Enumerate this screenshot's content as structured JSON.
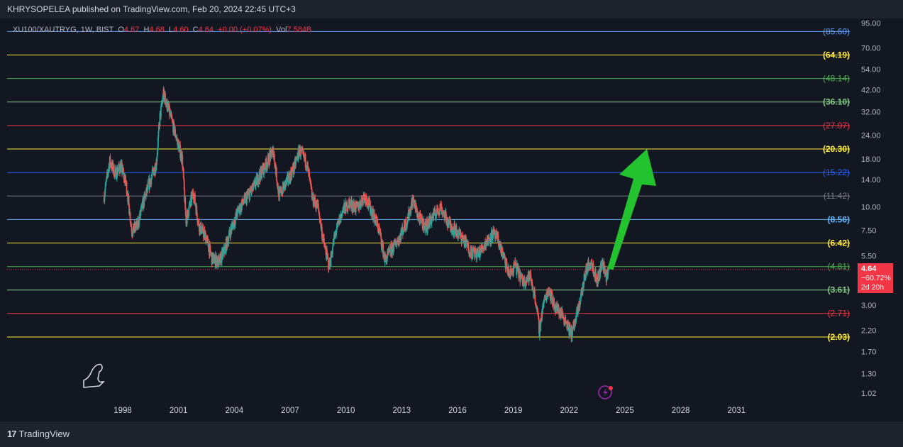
{
  "header": {
    "publisher_line": "KHRYSOPELEA published on TradingView.com, Feb 20, 2024 22:45 UTC+3"
  },
  "legend": {
    "symbol": "XU100/XAUTRYG, 1W, BIST",
    "open_label": "O",
    "open": "4.67",
    "high_label": "H",
    "high": "4.68",
    "low_label": "L",
    "low": "4.60",
    "close_label": "C",
    "close": "4.64",
    "change": "+0.00 (+0.07%)",
    "vol_label": "Vol",
    "vol": "7.584B"
  },
  "price_tag": {
    "price": "4.64",
    "change": "−60.72%",
    "countdown": "2d 20h"
  },
  "footer": {
    "brand": "TradingView"
  },
  "colors": {
    "background": "#131722",
    "up": "#26a69a",
    "down": "#ef5350",
    "arrow": "#22c32e",
    "price_line": "#f23645"
  },
  "icons": {
    "dino": "dinosaur-icon",
    "event": "lightning-icon"
  },
  "chart_data": {
    "type": "candlestick",
    "scale": "log",
    "x_range": [
      1996.0,
      2034.0
    ],
    "ylim": [
      0.9,
      100
    ],
    "x_ticks": [
      "1998",
      "2001",
      "2004",
      "2007",
      "2010",
      "2013",
      "2016",
      "2019",
      "2022",
      "2025",
      "2028",
      "2031"
    ],
    "y_ticks": [
      "95.00",
      "70.00",
      "54.00",
      "42.00",
      "32.00",
      "24.00",
      "18.00",
      "14.00",
      "10.00",
      "7.50",
      "5.50",
      "3.00",
      "2.20",
      "1.70",
      "1.30",
      "1.02"
    ],
    "levels": [
      {
        "label": "(85.60)",
        "value": 85.6,
        "color": "#5b9cf6"
      },
      {
        "label": "(64.19)",
        "value": 64.19,
        "color": "#ffeb3b"
      },
      {
        "label": "(48.14)",
        "value": 48.14,
        "color": "#4caf50"
      },
      {
        "label": "(36.10)",
        "value": 36.1,
        "color": "#81c784"
      },
      {
        "label": "(27.07)",
        "value": 27.07,
        "color": "#f23645"
      },
      {
        "label": "(20.30)",
        "value": 20.3,
        "color": "#ffeb3b"
      },
      {
        "label": "(15.22)",
        "value": 15.22,
        "color": "#2962ff"
      },
      {
        "label": "(11.42)",
        "value": 11.42,
        "color": "#787b86"
      },
      {
        "label": "(8.56)",
        "value": 8.56,
        "color": "#64b5f6"
      },
      {
        "label": "(6.42)",
        "value": 6.42,
        "color": "#ffeb3b"
      },
      {
        "label": "(4.81)",
        "value": 4.81,
        "color": "#4caf50"
      },
      {
        "label": "(3.61)",
        "value": 3.61,
        "color": "#81c784"
      },
      {
        "label": "(2.71)",
        "value": 2.71,
        "color": "#f23645"
      },
      {
        "label": "(2.03)",
        "value": 2.03,
        "color": "#ffeb3b"
      }
    ],
    "current_price": 4.64,
    "price_path": [
      [
        1997.0,
        11.5
      ],
      [
        1997.3,
        17.5
      ],
      [
        1997.6,
        15.0
      ],
      [
        1997.9,
        16.5
      ],
      [
        1998.2,
        13.0
      ],
      [
        1998.5,
        7.4
      ],
      [
        1998.8,
        8.0
      ],
      [
        1999.1,
        10.5
      ],
      [
        1999.5,
        14.0
      ],
      [
        1999.8,
        17.0
      ],
      [
        2000.0,
        30.0
      ],
      [
        2000.2,
        40.0
      ],
      [
        2000.5,
        32.0
      ],
      [
        2000.9,
        23.0
      ],
      [
        2001.2,
        18.0
      ],
      [
        2001.4,
        8.5
      ],
      [
        2001.8,
        12.0
      ],
      [
        2002.1,
        8.0
      ],
      [
        2002.5,
        6.8
      ],
      [
        2002.8,
        5.3
      ],
      [
        2003.2,
        5.1
      ],
      [
        2003.5,
        6.0
      ],
      [
        2003.8,
        7.5
      ],
      [
        2004.2,
        9.5
      ],
      [
        2004.6,
        11.0
      ],
      [
        2005.0,
        12.5
      ],
      [
        2005.4,
        15.0
      ],
      [
        2005.8,
        17.5
      ],
      [
        2006.1,
        20.0
      ],
      [
        2006.4,
        11.5
      ],
      [
        2006.8,
        13.5
      ],
      [
        2007.2,
        16.0
      ],
      [
        2007.5,
        20.0
      ],
      [
        2007.9,
        17.0
      ],
      [
        2008.2,
        11.0
      ],
      [
        2008.5,
        10.0
      ],
      [
        2008.8,
        6.5
      ],
      [
        2009.1,
        4.8
      ],
      [
        2009.4,
        7.0
      ],
      [
        2009.8,
        9.5
      ],
      [
        2010.2,
        10.5
      ],
      [
        2010.6,
        9.8
      ],
      [
        2011.0,
        11.5
      ],
      [
        2011.4,
        9.5
      ],
      [
        2011.8,
        7.5
      ],
      [
        2012.1,
        5.2
      ],
      [
        2012.5,
        6.0
      ],
      [
        2012.9,
        7.0
      ],
      [
        2013.3,
        8.5
      ],
      [
        2013.6,
        11.0
      ],
      [
        2013.9,
        8.8
      ],
      [
        2014.3,
        7.8
      ],
      [
        2014.7,
        9.0
      ],
      [
        2015.1,
        10.0
      ],
      [
        2015.5,
        8.2
      ],
      [
        2015.9,
        7.5
      ],
      [
        2016.3,
        6.8
      ],
      [
        2016.7,
        5.8
      ],
      [
        2017.1,
        5.6
      ],
      [
        2017.5,
        6.4
      ],
      [
        2017.9,
        7.2
      ],
      [
        2018.2,
        6.6
      ],
      [
        2018.5,
        5.3
      ],
      [
        2018.8,
        4.3
      ],
      [
        2019.1,
        4.9
      ],
      [
        2019.5,
        4.0
      ],
      [
        2019.9,
        4.3
      ],
      [
        2020.2,
        3.2
      ],
      [
        2020.4,
        2.2
      ],
      [
        2020.6,
        3.0
      ],
      [
        2020.9,
        3.7
      ],
      [
        2021.2,
        3.0
      ],
      [
        2021.6,
        2.7
      ],
      [
        2021.9,
        2.4
      ],
      [
        2022.1,
        2.1
      ],
      [
        2022.4,
        2.6
      ],
      [
        2022.7,
        3.6
      ],
      [
        2022.9,
        4.6
      ],
      [
        2023.2,
        5.2
      ],
      [
        2023.5,
        4.0
      ],
      [
        2023.8,
        5.1
      ],
      [
        2024.0,
        4.3
      ],
      [
        2024.14,
        4.64
      ]
    ]
  }
}
